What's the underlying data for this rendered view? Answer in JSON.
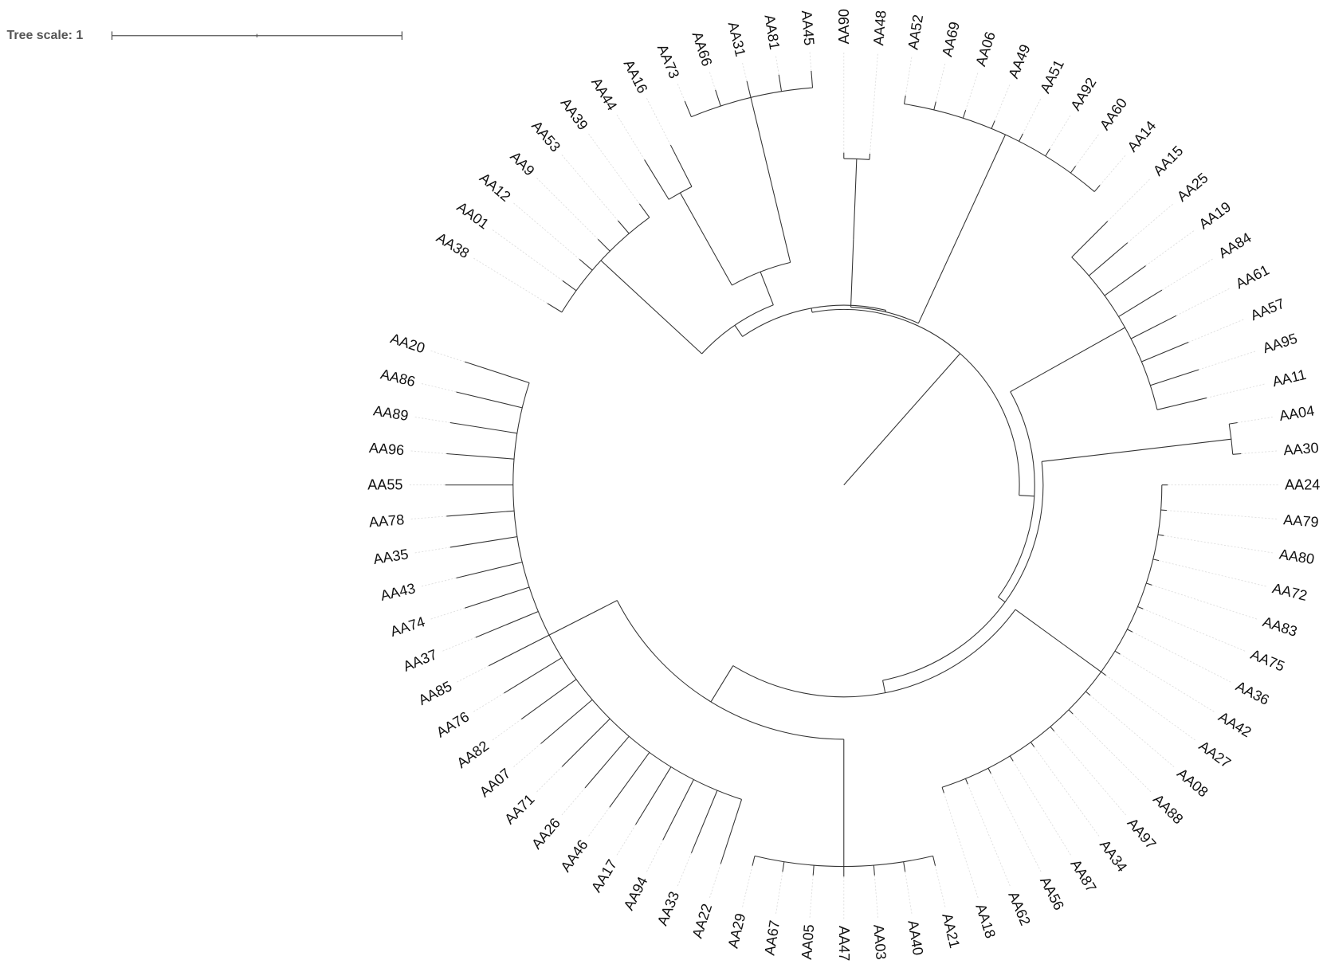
{
  "tree_scale_label": "Tree scale: 1",
  "leaves": [
    "AA90",
    "AA48",
    "AA52",
    "AA69",
    "AA06",
    "AA49",
    "AA51",
    "AA92",
    "AA60",
    "AA14",
    "AA15",
    "AA25",
    "AA19",
    "AA84",
    "AA61",
    "AA57",
    "AA95",
    "AA11",
    "AA04",
    "AA30",
    "AA24",
    "AA79",
    "AA80",
    "AA72",
    "AA83",
    "AA75",
    "AA36",
    "AA42",
    "AA27",
    "AA08",
    "AA88",
    "AA97",
    "AA34",
    "AA87",
    "AA56",
    "AA62",
    "AA18",
    "AA21",
    "AA40",
    "AA03",
    "AA47",
    "AA05",
    "AA67",
    "AA29",
    "AA22",
    "AA33",
    "AA94",
    "AA17",
    "AA46",
    "AA26",
    "AA71",
    "AA07",
    "AA82",
    "AA76",
    "AA85",
    "AA37",
    "AA74",
    "AA43",
    "AA35",
    "AA78",
    "AA55",
    "AA96",
    "AA89",
    "AA86",
    "AA20",
    "AA38",
    "AA01",
    "AA12",
    "AA9",
    "AA53",
    "AA39",
    "AA44",
    "AA16",
    "AA73",
    "AA66",
    "AA31",
    "AA81",
    "AA45"
  ]
}
